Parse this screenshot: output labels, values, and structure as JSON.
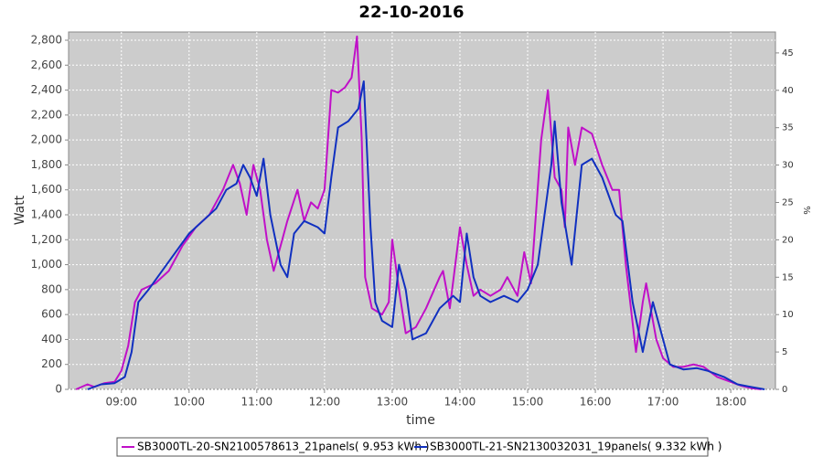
{
  "chart_data": {
    "type": "line",
    "title": "22-10-2016",
    "x_label": "time",
    "y_label": "Watt",
    "y2_label": "%",
    "xlim": [
      8.22,
      18.66
    ],
    "xticks": [
      {
        "value": 9,
        "label": "09:00"
      },
      {
        "value": 10,
        "label": "10:00"
      },
      {
        "value": 11,
        "label": "11:00"
      },
      {
        "value": 12,
        "label": "12:00"
      },
      {
        "value": 13,
        "label": "13:00"
      },
      {
        "value": 14,
        "label": "14:00"
      },
      {
        "value": 15,
        "label": "15:00"
      },
      {
        "value": 16,
        "label": "16:00"
      },
      {
        "value": 17,
        "label": "17:00"
      },
      {
        "value": 18,
        "label": "18:00"
      }
    ],
    "ylim": [
      0,
      2866
    ],
    "yticks": [
      0,
      200,
      400,
      600,
      800,
      {
        "value": 1000,
        "label": "1,000"
      },
      {
        "value": 1200,
        "label": "1,200"
      },
      {
        "value": 1400,
        "label": "1,400"
      },
      {
        "value": 1600,
        "label": "1,600"
      },
      {
        "value": 1800,
        "label": "1,800"
      },
      {
        "value": 2000,
        "label": "2,000"
      },
      {
        "value": 2200,
        "label": "2,200"
      },
      {
        "value": 2400,
        "label": "2,400"
      },
      {
        "value": 2600,
        "label": "2,600"
      },
      {
        "value": 2800,
        "label": "2,800"
      }
    ],
    "y2lim": [
      0,
      47.8
    ],
    "y2ticks": [
      0,
      5,
      10,
      15,
      20,
      25,
      30,
      35,
      40,
      45
    ],
    "grid": true,
    "legend": "bottom",
    "series": [
      {
        "name": "SB3000TL-20-SN2100578613_21panels( 9.953 kWh )",
        "color": "#c010c8",
        "x": [
          8.33,
          8.5,
          8.6,
          8.75,
          8.9,
          9.0,
          9.1,
          9.2,
          9.3,
          9.5,
          9.7,
          9.9,
          10.1,
          10.3,
          10.5,
          10.65,
          10.75,
          10.85,
          10.95,
          11.05,
          11.15,
          11.25,
          11.35,
          11.45,
          11.6,
          11.7,
          11.8,
          11.9,
          12.0,
          12.05,
          12.1,
          12.2,
          12.3,
          12.4,
          12.48,
          12.55,
          12.6,
          12.7,
          12.85,
          12.95,
          13.0,
          13.1,
          13.2,
          13.35,
          13.5,
          13.7,
          13.75,
          13.85,
          14.0,
          14.1,
          14.2,
          14.3,
          14.45,
          14.6,
          14.7,
          14.85,
          14.95,
          15.05,
          15.2,
          15.3,
          15.4,
          15.5,
          15.55,
          15.6,
          15.7,
          15.8,
          15.95,
          16.1,
          16.25,
          16.35,
          16.45,
          16.6,
          16.7,
          16.75,
          16.9,
          17.0,
          17.15,
          17.3,
          17.45,
          17.6,
          17.8,
          18.0,
          18.15,
          18.3,
          18.45
        ],
        "values": [
          0,
          40,
          20,
          50,
          60,
          150,
          350,
          700,
          800,
          850,
          950,
          1150,
          1300,
          1400,
          1600,
          1800,
          1650,
          1400,
          1800,
          1600,
          1200,
          950,
          1150,
          1350,
          1600,
          1350,
          1500,
          1450,
          1600,
          2000,
          2400,
          2380,
          2420,
          2500,
          2830,
          2000,
          900,
          650,
          600,
          700,
          1200,
          800,
          450,
          500,
          650,
          900,
          950,
          650,
          1300,
          1000,
          750,
          800,
          750,
          800,
          900,
          750,
          1100,
          850,
          2000,
          2400,
          1700,
          1600,
          1300,
          2100,
          1800,
          2100,
          2050,
          1800,
          1600,
          1600,
          1000,
          300,
          700,
          850,
          400,
          250,
          180,
          180,
          200,
          180,
          100,
          60,
          30,
          10,
          0
        ]
      },
      {
        "name": "SB3000TL-21-SN2130032031_19panels( 9.332 kWh )",
        "color": "#1030c0",
        "x": [
          8.5,
          8.7,
          8.9,
          9.05,
          9.15,
          9.25,
          9.4,
          9.6,
          9.8,
          10.0,
          10.2,
          10.4,
          10.55,
          10.7,
          10.8,
          10.9,
          11.0,
          11.1,
          11.2,
          11.35,
          11.45,
          11.55,
          11.7,
          11.9,
          12.0,
          12.1,
          12.2,
          12.35,
          12.5,
          12.58,
          12.68,
          12.75,
          12.85,
          13.0,
          13.1,
          13.2,
          13.3,
          13.5,
          13.7,
          13.9,
          14.0,
          14.1,
          14.2,
          14.3,
          14.45,
          14.65,
          14.85,
          15.0,
          15.15,
          15.35,
          15.4,
          15.5,
          15.65,
          15.8,
          15.95,
          16.1,
          16.3,
          16.4,
          16.55,
          16.7,
          16.85,
          16.95,
          17.1,
          17.3,
          17.5,
          17.65,
          17.9,
          18.1,
          18.3,
          18.5
        ],
        "values": [
          0,
          40,
          50,
          100,
          300,
          700,
          800,
          950,
          1100,
          1250,
          1350,
          1450,
          1600,
          1650,
          1800,
          1700,
          1550,
          1850,
          1400,
          1000,
          900,
          1250,
          1350,
          1300,
          1250,
          1700,
          2100,
          2150,
          2250,
          2470,
          1300,
          700,
          550,
          500,
          1000,
          800,
          400,
          450,
          650,
          750,
          700,
          1250,
          900,
          750,
          700,
          750,
          700,
          800,
          1000,
          1800,
          2150,
          1500,
          1000,
          1800,
          1850,
          1700,
          1400,
          1350,
          700,
          300,
          700,
          500,
          200,
          160,
          170,
          150,
          100,
          40,
          20,
          0
        ]
      }
    ]
  }
}
